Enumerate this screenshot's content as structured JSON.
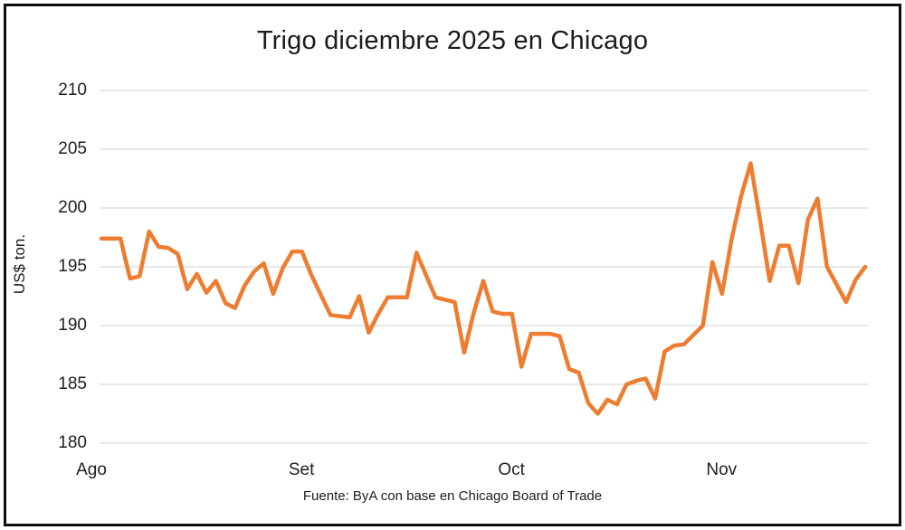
{
  "title": "Trigo diciembre 2025 en Chicago",
  "source": "Fuente: ByA con base en Chicago Board of Trade",
  "y_axis": {
    "title": "US$ ton."
  },
  "colors": {
    "line": "#ED7D31",
    "grid": "#D9D9D9",
    "text": "#1f1f1f",
    "border": "#0e0e0e"
  },
  "chart_data": {
    "type": "line",
    "title": "Trigo diciembre 2025 en Chicago",
    "ylabel": "US$ ton.",
    "ylim": [
      180,
      210
    ],
    "y_ticks": [
      210,
      205,
      200,
      195,
      190,
      185,
      180
    ],
    "grid": "horizontal",
    "legend": "none",
    "x_tick_labels": [
      "Ago",
      "Set",
      "Oct",
      "Nov"
    ],
    "month_start_indices": [
      0,
      22,
      44,
      66
    ],
    "source": "Fuente: ByA con base en Chicago Board of Trade",
    "series": [
      {
        "name": "Trigo diciembre 2025",
        "color": "#ED7D31",
        "values": [
          197.4,
          197.4,
          197.4,
          194.0,
          194.2,
          198.0,
          196.7,
          196.6,
          196.1,
          193.1,
          194.4,
          192.8,
          193.8,
          191.9,
          191.5,
          193.4,
          194.6,
          195.3,
          192.7,
          194.9,
          196.3,
          196.3,
          194.3,
          192.6,
          190.9,
          190.8,
          190.7,
          192.5,
          189.4,
          191.0,
          192.4,
          192.4,
          192.4,
          196.2,
          194.3,
          192.4,
          192.2,
          192.0,
          187.7,
          191.1,
          193.8,
          191.2,
          191.0,
          191.0,
          186.5,
          189.3,
          189.3,
          189.3,
          189.1,
          186.3,
          186.0,
          183.4,
          182.5,
          183.7,
          183.3,
          185.0,
          185.3,
          185.5,
          183.8,
          187.8,
          188.3,
          188.4,
          189.2,
          190.0,
          195.4,
          192.7,
          197.3,
          201.0,
          203.8,
          198.9,
          193.8,
          196.8,
          196.8,
          193.6,
          199.0,
          200.8,
          195.0,
          193.5,
          192.0,
          193.9,
          195.0
        ]
      }
    ]
  }
}
